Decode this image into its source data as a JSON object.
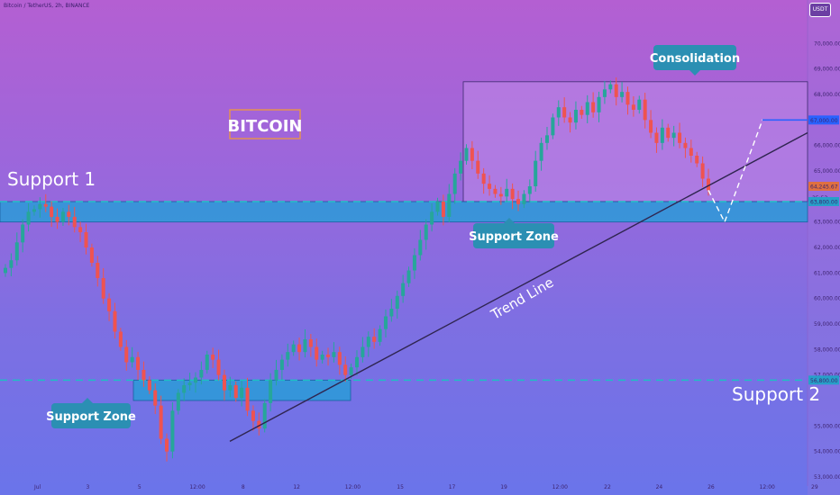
{
  "header": {
    "symbol": "Bitcoin / TetherUS, 2h, BINANCE",
    "currency": "USDT"
  },
  "annotations": {
    "logo": "BITCOIN",
    "support1": "Support 1",
    "support2": "Support 2",
    "support_zone_left": "Support Zone",
    "support_zone_right": "Support Zone",
    "consolidation": "Consolidation",
    "trend_line": "Trend Line"
  },
  "price_labels": {
    "last_price": "64,245.67",
    "countdown": "35:53",
    "target": "67,000.00",
    "support1_price": "63,800.00",
    "support2_price": "56,800.00"
  },
  "colors": {
    "zone_fill": "#2a9bd8",
    "zone_border": "#1c5ea0",
    "consolidation_fill": "#c08ae8",
    "up_candle": "#26a69a",
    "down_candle": "#ef5350",
    "dashed_support": "#1fbfc4",
    "pill_bg": "#2b8fb3",
    "target_line": "#2962ff"
  },
  "chart_data": {
    "type": "candlestick",
    "ylim": [
      53000,
      71000
    ],
    "y_ticks": [
      {
        "v": 70000,
        "label": "70,000.00"
      },
      {
        "v": 69000,
        "label": "69,000.00"
      },
      {
        "v": 68000,
        "label": "68,000.00"
      },
      {
        "v": 66000,
        "label": "66,000.00"
      },
      {
        "v": 65000,
        "label": "65,000.00"
      },
      {
        "v": 63000,
        "label": "63,000.00"
      },
      {
        "v": 62000,
        "label": "62,000.00"
      },
      {
        "v": 61000,
        "label": "61,000.00"
      },
      {
        "v": 60000,
        "label": "60,000.00"
      },
      {
        "v": 59000,
        "label": "59,000.00"
      },
      {
        "v": 58000,
        "label": "58,000.00"
      },
      {
        "v": 57000,
        "label": "57,000.00"
      },
      {
        "v": 55000,
        "label": "55,000.00"
      },
      {
        "v": 54000,
        "label": "54,000.00"
      },
      {
        "v": 53000,
        "label": "53,000.00"
      }
    ],
    "x_labels": [
      "Jul",
      "3",
      "5",
      "12:00",
      "8",
      "12",
      "12:00",
      "15",
      "17",
      "19",
      "12:00",
      "22",
      "24",
      "26",
      "12:00",
      "29"
    ],
    "support1": 63800,
    "support2": 56800,
    "zone_upper": [
      63800,
      63000
    ],
    "zone_lower": [
      56800,
      56000
    ],
    "consolidation_box": [
      68500,
      63800
    ],
    "target": 67000,
    "projection": [
      64245.67,
      63000,
      67000
    ],
    "trend_line": [
      54400,
      66500
    ],
    "closes": [
      61200,
      61500,
      62200,
      62900,
      63400,
      63500,
      63700,
      63600,
      63200,
      63000,
      63400,
      63200,
      62800,
      62600,
      62000,
      61400,
      60800,
      60000,
      59500,
      58700,
      58100,
      57500,
      57700,
      57200,
      56800,
      56400,
      55800,
      54500,
      54000,
      55600,
      56300,
      56600,
      56700,
      56900,
      57200,
      57800,
      57600,
      57000,
      56400,
      56600,
      56100,
      56500,
      55600,
      55200,
      54900,
      55900,
      56800,
      57200,
      57600,
      57900,
      58200,
      57900,
      58400,
      58100,
      57600,
      57800,
      57700,
      57900,
      57400,
      57000,
      57300,
      57700,
      58100,
      58500,
      58300,
      58800,
      59300,
      59600,
      60100,
      60600,
      61100,
      61700,
      62300,
      62900,
      63400,
      63800,
      63200,
      64100,
      64900,
      65400,
      65900,
      65400,
      64900,
      64500,
      64300,
      64100,
      64000,
      64300,
      63900,
      63700,
      64100,
      64400,
      65400,
      66100,
      66400,
      67100,
      67500,
      67100,
      66900,
      67400,
      67200,
      67700,
      67300,
      67900,
      68200,
      68400,
      67900,
      68100,
      67600,
      67400,
      67800,
      67000,
      66500,
      66100,
      66700,
      66300,
      66500,
      66100,
      65900,
      65600,
      65300,
      64700,
      64245
    ]
  }
}
